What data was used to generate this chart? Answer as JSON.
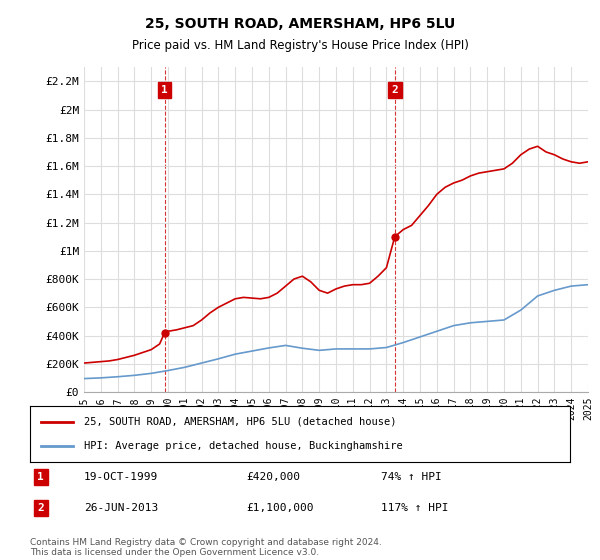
{
  "title": "25, SOUTH ROAD, AMERSHAM, HP6 5LU",
  "subtitle": "Price paid vs. HM Land Registry's House Price Index (HPI)",
  "legend_line1": "25, SOUTH ROAD, AMERSHAM, HP6 5LU (detached house)",
  "legend_line2": "HPI: Average price, detached house, Buckinghamshire",
  "annotation1_label": "1",
  "annotation1_date": "19-OCT-1999",
  "annotation1_price": "£420,000",
  "annotation1_hpi": "74% ↑ HPI",
  "annotation2_label": "2",
  "annotation2_date": "26-JUN-2013",
  "annotation2_price": "£1,100,000",
  "annotation2_hpi": "117% ↑ HPI",
  "footnote": "Contains HM Land Registry data © Crown copyright and database right 2024.\nThis data is licensed under the Open Government Licence v3.0.",
  "ylim": [
    0,
    2300000
  ],
  "yticks": [
    0,
    200000,
    400000,
    600000,
    800000,
    1000000,
    1200000,
    1400000,
    1600000,
    1800000,
    2000000,
    2200000
  ],
  "ytick_labels": [
    "£0",
    "£200K",
    "£400K",
    "£600K",
    "£800K",
    "£1M",
    "£1.2M",
    "£1.4M",
    "£1.6M",
    "£1.8M",
    "£2M",
    "£2.2M"
  ],
  "x_start_year": 1995,
  "x_end_year": 2025,
  "sale1_year": 1999.8,
  "sale1_value": 420000,
  "sale2_year": 2013.5,
  "sale2_value": 1100000,
  "red_color": "#cc0000",
  "blue_color": "#6699cc",
  "background_color": "#ffffff",
  "grid_color": "#dddddd",
  "annotation_box_color": "#cc0000",
  "hpi_x": [
    1995,
    1996,
    1997,
    1998,
    1999,
    2000,
    2001,
    2002,
    2003,
    2004,
    2005,
    2006,
    2007,
    2008,
    2009,
    2010,
    2011,
    2012,
    2013,
    2014,
    2015,
    2016,
    2017,
    2018,
    2019,
    2020,
    2021,
    2022,
    2023,
    2024,
    2025
  ],
  "hpi_y": [
    95000,
    100000,
    108000,
    118000,
    132000,
    152000,
    175000,
    205000,
    235000,
    268000,
    290000,
    312000,
    330000,
    310000,
    295000,
    305000,
    305000,
    305000,
    315000,
    350000,
    390000,
    430000,
    470000,
    490000,
    500000,
    510000,
    580000,
    680000,
    720000,
    750000,
    760000
  ],
  "price_x": [
    1995.0,
    1995.5,
    1996.0,
    1996.5,
    1997.0,
    1997.5,
    1998.0,
    1998.5,
    1999.0,
    1999.5,
    1999.8,
    2000.0,
    2000.5,
    2001.0,
    2001.5,
    2002.0,
    2002.5,
    2003.0,
    2003.5,
    2004.0,
    2004.5,
    2005.0,
    2005.5,
    2006.0,
    2006.5,
    2007.0,
    2007.5,
    2008.0,
    2008.5,
    2009.0,
    2009.5,
    2010.0,
    2010.5,
    2011.0,
    2011.5,
    2012.0,
    2012.5,
    2013.0,
    2013.5,
    2014.0,
    2014.5,
    2015.0,
    2015.5,
    2016.0,
    2016.5,
    2017.0,
    2017.5,
    2018.0,
    2018.5,
    2019.0,
    2019.5,
    2020.0,
    2020.5,
    2021.0,
    2021.5,
    2022.0,
    2022.5,
    2023.0,
    2023.5,
    2024.0,
    2024.5,
    2025.0
  ],
  "price_y": [
    205000,
    210000,
    215000,
    220000,
    230000,
    245000,
    260000,
    280000,
    300000,
    340000,
    420000,
    430000,
    440000,
    455000,
    470000,
    510000,
    560000,
    600000,
    630000,
    660000,
    670000,
    665000,
    660000,
    670000,
    700000,
    750000,
    800000,
    820000,
    780000,
    720000,
    700000,
    730000,
    750000,
    760000,
    760000,
    770000,
    820000,
    880000,
    1100000,
    1150000,
    1180000,
    1250000,
    1320000,
    1400000,
    1450000,
    1480000,
    1500000,
    1530000,
    1550000,
    1560000,
    1570000,
    1580000,
    1620000,
    1680000,
    1720000,
    1740000,
    1700000,
    1680000,
    1650000,
    1630000,
    1620000,
    1630000
  ]
}
